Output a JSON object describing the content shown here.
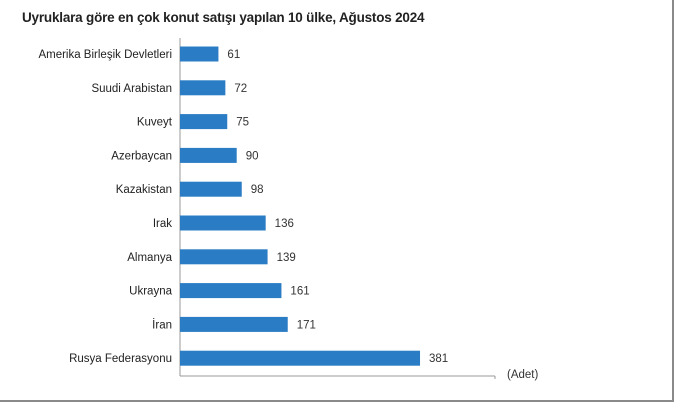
{
  "chart_data": {
    "type": "bar",
    "orientation": "horizontal",
    "title": "Uyruklara göre en çok konut satışı yapılan 10 ülke, Ağustos 2024",
    "unit_label": "(Adet)",
    "categories": [
      "Amerika Birleşik Devletleri",
      "Suudi Arabistan",
      "Kuveyt",
      "Azerbaycan",
      "Kazakistan",
      "Irak",
      "Almanya",
      "Ukrayna",
      "İran",
      "Rusya Federasyonu"
    ],
    "values": [
      61,
      72,
      75,
      90,
      98,
      136,
      139,
      161,
      171,
      381
    ],
    "xlim": [
      0,
      500
    ],
    "grid": false,
    "data_labels": true,
    "bar_color": "#2a7cc4"
  }
}
